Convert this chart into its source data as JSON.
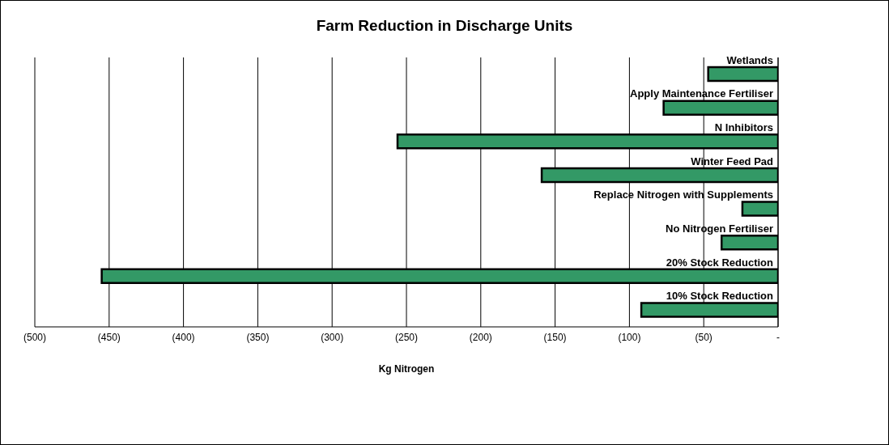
{
  "chart_data": {
    "type": "bar",
    "orientation": "horizontal",
    "title": "Farm Reduction in Discharge Units",
    "xlabel": "Kg Nitrogen",
    "categories": [
      "Wetlands",
      "Apply Maintenance Fertiliser",
      "N Inhibitors",
      "Winter Feed Pad",
      "Replace Nitrogen with Supplements",
      "No Nitrogen Fertiliser",
      "20% Stock Reduction",
      "10% Stock Reduction"
    ],
    "values": [
      -47,
      -77,
      -256,
      -159,
      -24,
      -38,
      -455,
      -92
    ],
    "color": "#339966",
    "xlim": [
      -500,
      0
    ],
    "xticks": [
      {
        "value": -500,
        "label": "(500)"
      },
      {
        "value": -450,
        "label": "(450)"
      },
      {
        "value": -400,
        "label": "(400)"
      },
      {
        "value": -350,
        "label": "(350)"
      },
      {
        "value": -300,
        "label": "(300)"
      },
      {
        "value": -250,
        "label": "(250)"
      },
      {
        "value": -200,
        "label": "(200)"
      },
      {
        "value": -150,
        "label": "(150)"
      },
      {
        "value": -100,
        "label": "(100)"
      },
      {
        "value": -50,
        "label": "(50)"
      },
      {
        "value": 0,
        "label": "-"
      }
    ],
    "grid": "x"
  }
}
